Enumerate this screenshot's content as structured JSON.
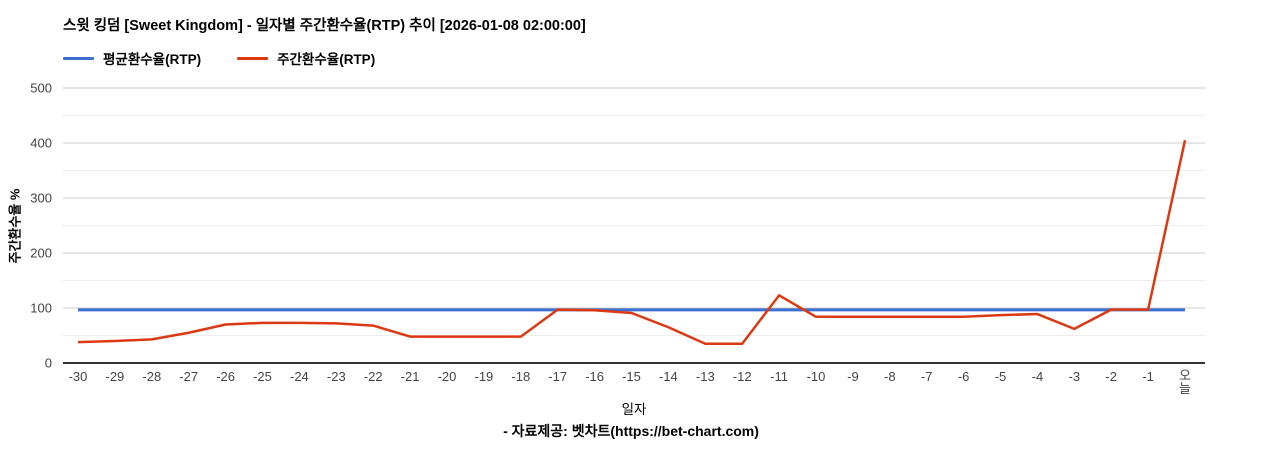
{
  "header": {
    "title": "스윗 킹덤 [Sweet Kingdom] - 일자별 주간환수율(RTP) 추이 [2026-01-08 02:00:00]"
  },
  "legend": [
    {
      "label": "평균환수율(RTP)",
      "color": "#3B6FD4"
    },
    {
      "label": "주간환수율(RTP)",
      "color": "#DC3912"
    }
  ],
  "chart_data": {
    "type": "line",
    "title": "스윗 킹덤 [Sweet Kingdom] - 일자별 주간환수율(RTP) 추이 [2026-01-08 02:00:00]",
    "xlabel": "일자",
    "ylabel": "주간환수율 %",
    "ylim": [
      0,
      500
    ],
    "yticks": [
      0,
      100,
      200,
      300,
      400,
      500
    ],
    "minor_grid_step": 50,
    "grid": true,
    "legend_position": "top-left",
    "x": [
      "-30",
      "-29",
      "-28",
      "-27",
      "-26",
      "-25",
      "-24",
      "-23",
      "-22",
      "-21",
      "-20",
      "-19",
      "-18",
      "-17",
      "-16",
      "-15",
      "-14",
      "-13",
      "-12",
      "-11",
      "-10",
      "-9",
      "-8",
      "-7",
      "-6",
      "-5",
      "-4",
      "-3",
      "-2",
      "-1",
      "오늘"
    ],
    "series": [
      {
        "name": "평균환수율(RTP)",
        "color": "#3B6FD4",
        "values": [
          96.5,
          96.5,
          96.5,
          96.5,
          96.5,
          96.5,
          96.5,
          96.5,
          96.5,
          96.5,
          96.5,
          96.5,
          96.5,
          96.5,
          96.5,
          96.5,
          96.5,
          96.5,
          96.5,
          96.5,
          96.5,
          96.5,
          96.5,
          96.5,
          96.5,
          96.5,
          96.5,
          96.5,
          96.5,
          96.5,
          96.5
        ]
      },
      {
        "name": "주간환수율(RTP)",
        "color": "#DC3912",
        "values": [
          38,
          40,
          43,
          55,
          70,
          73,
          73,
          72,
          68,
          48,
          48,
          48,
          48,
          97,
          96,
          91,
          65,
          35,
          35,
          123,
          84,
          84,
          84,
          84,
          84,
          87,
          89,
          62,
          97,
          97,
          405
        ]
      }
    ]
  },
  "colors": {
    "major_grid": "#cccccc",
    "minor_grid": "#ededed",
    "axis_baseline": "#333333",
    "tick_text": "#444444"
  },
  "footer": {
    "source": "- 자료제공: 벳차트(https://bet-chart.com)"
  }
}
